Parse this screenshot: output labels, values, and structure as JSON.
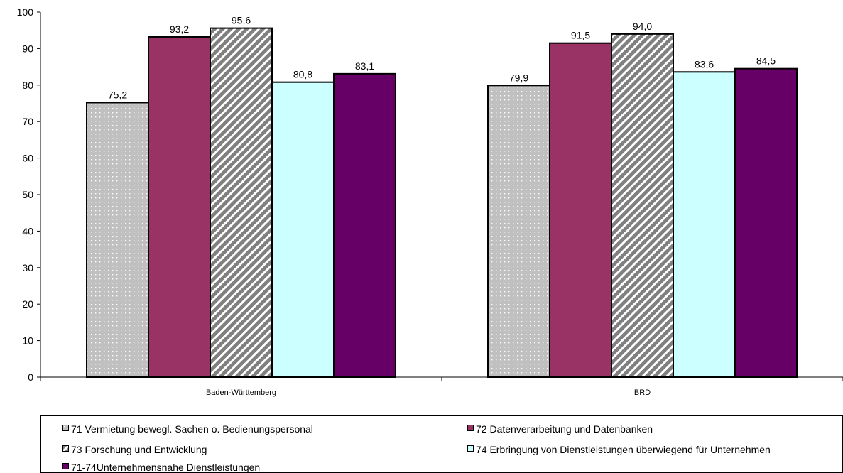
{
  "chart_data": {
    "type": "bar",
    "categories": [
      "Baden-Württemberg",
      "BRD"
    ],
    "series": [
      {
        "name": "71 Vermietung bewegl. Sachen o. Bedienungspersonal",
        "values": [
          75.2,
          79.9
        ],
        "value_labels": [
          "75,2",
          "79,9"
        ],
        "color": "#c0c0c0",
        "pattern": "dots"
      },
      {
        "name": "72 Datenverarbeitung und Datenbanken",
        "values": [
          93.2,
          91.5
        ],
        "value_labels": [
          "93,2",
          "91,5"
        ],
        "color": "#993366",
        "pattern": "solid"
      },
      {
        "name": "73 Forschung und Entwicklung",
        "values": [
          95.6,
          94.0
        ],
        "value_labels": [
          "95,6",
          "94,0"
        ],
        "color": "#808080",
        "pattern": "diagonal-stripes"
      },
      {
        "name": "74 Erbringung von Dienstleistungen überwiegend für Unternehmen",
        "values": [
          80.8,
          83.6
        ],
        "value_labels": [
          "80,8",
          "83,6"
        ],
        "color": "#ccffff",
        "pattern": "solid"
      },
      {
        "name": "71-74Unternehmensnahe Dienstleistungen",
        "values": [
          83.1,
          84.5
        ],
        "value_labels": [
          "83,1",
          "84,5"
        ],
        "color": "#660066",
        "pattern": "solid"
      }
    ],
    "ylim": [
      0,
      100
    ],
    "yticks": [
      "0",
      "10",
      "20",
      "30",
      "40",
      "50",
      "60",
      "70",
      "80",
      "90",
      "100"
    ],
    "title": "",
    "xlabel": "",
    "ylabel": "",
    "grid": false,
    "legend_position": "bottom"
  }
}
